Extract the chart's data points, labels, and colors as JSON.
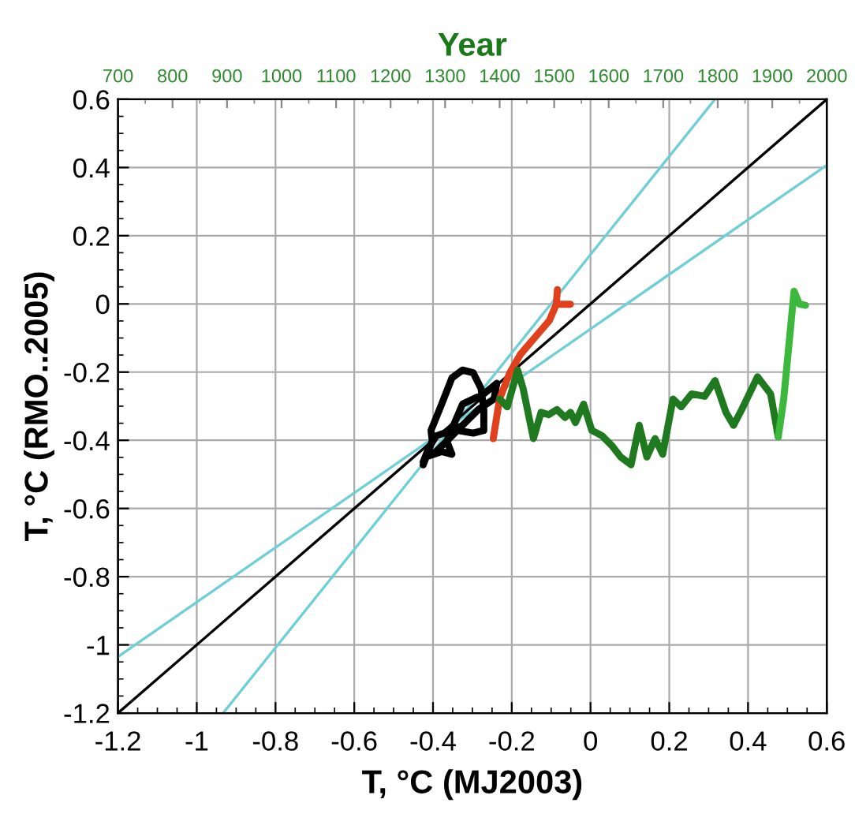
{
  "chart_data": {
    "type": "line",
    "xlabel": "T, °C (MJ2003)",
    "ylabel": "T, °C (RMO..2005)",
    "x2label": "Year",
    "xlim": [
      -1.2,
      0.6
    ],
    "xticks": [
      -1.2,
      -1,
      -0.8,
      -0.6,
      -0.4,
      -0.2,
      0,
      0.2,
      0.4,
      0.6
    ],
    "ylim": [
      -1.2,
      0.6
    ],
    "yticks": [
      -1.2,
      -1,
      -0.8,
      -0.6,
      -0.4,
      -0.2,
      0,
      0.2,
      0.4,
      0.6
    ],
    "x2lim": [
      700,
      2000
    ],
    "x2ticks": [
      700,
      800,
      900,
      1000,
      1100,
      1200,
      1300,
      1400,
      1500,
      1600,
      1700,
      1800,
      1900,
      2000
    ],
    "grid": true,
    "marker": "none",
    "line_style": "solid",
    "series": [
      {
        "color": "#6fcfd6",
        "x": [
          -0.933,
          0.316
        ],
        "values": [
          -1.2,
          0.6
        ]
      },
      {
        "color": "#6fcfd6",
        "x": [
          -1.2,
          0.6
        ],
        "values": [
          -1.035,
          0.407
        ]
      },
      {
        "color": "#000000",
        "x": [
          -1.2,
          0.6
        ],
        "values": [
          -1.2,
          0.6
        ]
      },
      {
        "color": "#000000",
        "x": [
          -0.425,
          -0.402,
          -0.405,
          -0.378,
          -0.352,
          -0.325,
          -0.298,
          -0.278,
          -0.271,
          -0.271,
          -0.298,
          -0.338,
          -0.365,
          -0.392,
          -0.418,
          -0.378,
          -0.352,
          -0.365,
          -0.325,
          -0.271,
          -0.238,
          -0.245,
          -0.285,
          -0.325,
          -0.352,
          -0.392,
          -0.412,
          -0.425
        ],
        "values": [
          -0.472,
          -0.402,
          -0.371,
          -0.294,
          -0.217,
          -0.194,
          -0.202,
          -0.248,
          -0.31,
          -0.371,
          -0.379,
          -0.371,
          -0.402,
          -0.433,
          -0.449,
          -0.433,
          -0.441,
          -0.402,
          -0.294,
          -0.264,
          -0.233,
          -0.279,
          -0.31,
          -0.356,
          -0.371,
          -0.387,
          -0.425,
          -0.464
        ]
      },
      {
        "color": "#e0401c",
        "x": [
          -0.247,
          -0.231,
          -0.205,
          -0.178,
          -0.138,
          -0.104,
          -0.087,
          -0.084,
          -0.087,
          -0.078,
          -0.051
        ],
        "values": [
          -0.395,
          -0.279,
          -0.202,
          -0.148,
          -0.094,
          -0.048,
          -0.001,
          0.042,
          -0.001,
          -0.001,
          -0.001
        ]
      },
      {
        "color": "#1f7a1f",
        "axis": "x2",
        "x": [
          1400,
          1414,
          1433,
          1443,
          1462,
          1476,
          1490,
          1505,
          1520,
          1530,
          1539,
          1554,
          1569,
          1588,
          1607,
          1622,
          1641,
          1656,
          1670,
          1685,
          1699,
          1718,
          1733,
          1752,
          1776,
          1795,
          1815,
          1829,
          1844,
          1873,
          1897,
          1911
        ],
        "values": [
          -0.279,
          -0.302,
          -0.194,
          -0.248,
          -0.395,
          -0.318,
          -0.325,
          -0.31,
          -0.333,
          -0.318,
          -0.348,
          -0.294,
          -0.371,
          -0.387,
          -0.418,
          -0.449,
          -0.472,
          -0.356,
          -0.449,
          -0.395,
          -0.441,
          -0.279,
          -0.302,
          -0.264,
          -0.271,
          -0.225,
          -0.318,
          -0.356,
          -0.31,
          -0.214,
          -0.264,
          -0.39
        ]
      },
      {
        "color": "#3cb83c",
        "axis": "x2",
        "x": [
          1911,
          1921,
          1940,
          1950,
          1961
        ],
        "values": [
          -0.39,
          -0.279,
          0.037,
          -0.001,
          -0.004
        ]
      }
    ]
  }
}
